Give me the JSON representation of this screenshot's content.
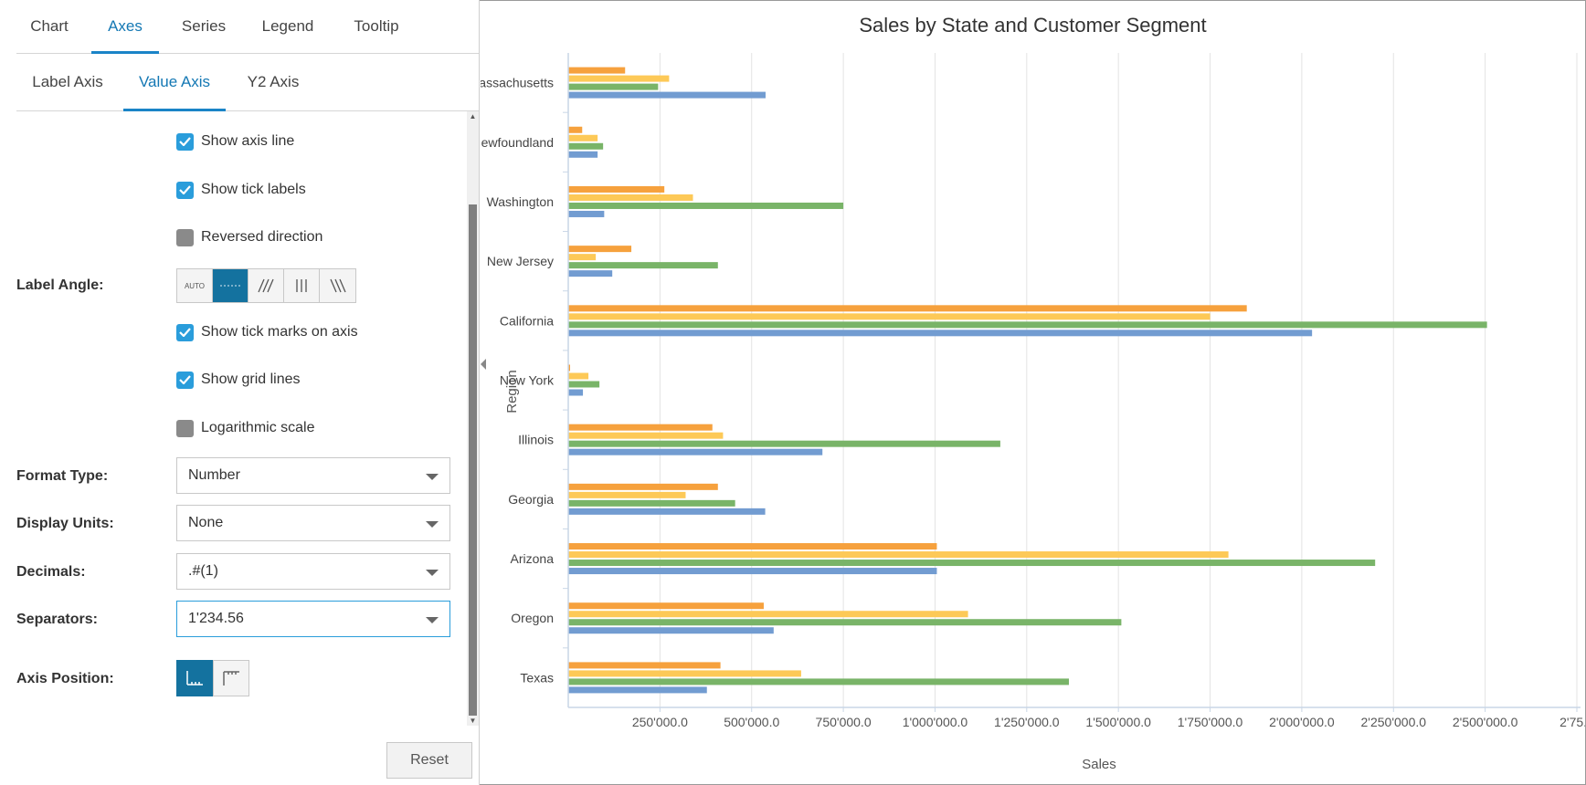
{
  "tabs_top": [
    "Chart",
    "Axes",
    "Series",
    "Legend",
    "Tooltip"
  ],
  "tabs_top_active": "Axes",
  "tabs_sub": [
    "Label Axis",
    "Value Axis",
    "Y2 Axis"
  ],
  "tabs_sub_active": "Value Axis",
  "options": {
    "show_axis_line": {
      "label": "Show axis line",
      "checked": true
    },
    "show_tick_labels": {
      "label": "Show tick labels",
      "checked": true
    },
    "reversed_direction": {
      "label": "Reversed direction",
      "checked": false
    },
    "show_tick_marks": {
      "label": "Show tick marks on axis",
      "checked": true
    },
    "show_grid_lines": {
      "label": "Show grid lines",
      "checked": true
    },
    "logarithmic_scale": {
      "label": "Logarithmic scale",
      "checked": false
    }
  },
  "label_angle": {
    "label": "Label Angle:",
    "auto_text": "AUTO",
    "options": [
      "auto",
      "horizontal",
      "diagonal-up",
      "vertical",
      "diagonal-down"
    ],
    "selected": "horizontal"
  },
  "format_type": {
    "label": "Format Type:",
    "value": "Number"
  },
  "display_units": {
    "label": "Display Units:",
    "value": "None"
  },
  "decimals": {
    "label": "Decimals:",
    "value": ".#(1)"
  },
  "separators": {
    "label": "Separators:",
    "value": "1'234.56"
  },
  "axis_position": {
    "label": "Axis Position:",
    "options": [
      "bottom",
      "top"
    ],
    "selected": "bottom"
  },
  "reset_label": "Reset",
  "colors": {
    "accent": "#1a84c7",
    "checkbox_on": "#2a9ddb",
    "active_button": "#14729f"
  },
  "chart_data": {
    "type": "bar",
    "orientation": "horizontal",
    "title": "Sales by State and Customer Segment",
    "xlabel": "Sales",
    "ylabel": "Region",
    "xlim": [
      0,
      2750000
    ],
    "x_ticks": [
      "250'000.0",
      "500'000.0",
      "750'000.0",
      "1'000'000.0",
      "1'250'000.0",
      "1'500'000.0",
      "1'750'000.0",
      "2'000'000.0",
      "2'250'000.0",
      "2'500'000.0",
      "2'75..."
    ],
    "grid": true,
    "legend": "none",
    "categories": [
      "Massachusetts",
      "Newfoundland",
      "Washington",
      "New Jersey",
      "California",
      "New York",
      "Illinois",
      "Georgia",
      "Arizona",
      "Oregon",
      "Texas"
    ],
    "series": [
      {
        "color": "#f6a13d",
        "values": [
          155000,
          38000,
          262000,
          172000,
          1850000,
          5000,
          393000,
          408000,
          1005000,
          533000,
          415000
        ]
      },
      {
        "color": "#fdc957",
        "values": [
          275000,
          80000,
          340000,
          75000,
          1750000,
          55000,
          422000,
          320000,
          1800000,
          1090000,
          635000
        ]
      },
      {
        "color": "#79b468",
        "values": [
          245000,
          95000,
          750000,
          408000,
          2505000,
          85000,
          1178000,
          455000,
          2200000,
          1508000,
          1365000
        ]
      },
      {
        "color": "#729cd1",
        "values": [
          538000,
          80000,
          98000,
          120000,
          2028000,
          40000,
          693000,
          537000,
          1005000,
          560000,
          378000
        ]
      }
    ]
  }
}
